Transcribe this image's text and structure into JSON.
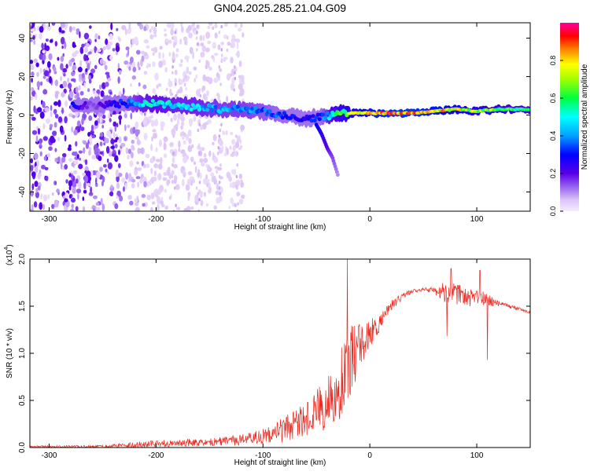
{
  "title": "GN04.2025.285.21.04.G09",
  "chart_data": [
    {
      "type": "heatmap",
      "title": "GN04.2025.285.21.04.G09",
      "xlabel": "Height of straight line (km)",
      "ylabel": "Frequency (Hz)",
      "xlim": [
        -318,
        150
      ],
      "ylim": [
        -50,
        48
      ],
      "x_ticks": [
        -300,
        -200,
        -100,
        0,
        100
      ],
      "y_ticks": [
        -40,
        -20,
        0,
        20,
        40
      ],
      "x_tick_labels": [
        "-300",
        "-200",
        "-100",
        "0",
        "100"
      ],
      "y_tick_labels": [
        "-40",
        "-20",
        "0",
        "20",
        "40"
      ],
      "colorbar": {
        "label": "Normalized spectral amplitude",
        "range": [
          0,
          1
        ],
        "ticks": [
          0.0,
          0.2,
          0.4,
          0.6,
          0.8
        ],
        "tick_labels": [
          "0.0",
          "0.2",
          "0.4",
          "0.6",
          "0.8"
        ]
      },
      "ridge": {
        "x": [
          -278,
          -260,
          -230,
          -215,
          -200,
          -180,
          -160,
          -140,
          -120,
          -100,
          -80,
          -60,
          -45,
          -35,
          -25,
          -10,
          0,
          20,
          40,
          60,
          80,
          100,
          120,
          150
        ],
        "freq": [
          5,
          5,
          6,
          6,
          6,
          5,
          4,
          3,
          3,
          2,
          0,
          -2,
          -1,
          0,
          1,
          1,
          1,
          1,
          1,
          2,
          3,
          2,
          3,
          3
        ],
        "amplitude": [
          0.3,
          0.15,
          0.35,
          0.5,
          0.55,
          0.5,
          0.5,
          0.45,
          0.45,
          0.4,
          0.35,
          0.3,
          0.35,
          0.6,
          0.7,
          0.8,
          0.9,
          0.95,
          0.95,
          0.9,
          0.8,
          0.75,
          0.7,
          0.6
        ]
      },
      "branch": {
        "x": [
          -50,
          -45,
          -40,
          -35,
          -30
        ],
        "freq": [
          -5,
          -10,
          -17,
          -22,
          -31
        ],
        "amplitude": [
          0.3,
          0.25,
          0.2,
          0.15,
          0.1
        ]
      }
    },
    {
      "type": "line",
      "title": "",
      "xlabel": "Height of straight line (km)",
      "ylabel": "SNR (10 * v/v)",
      "multiplier": "(x10",
      "multiplier_exp": "4",
      "xlim": [
        -318,
        150
      ],
      "ylim": [
        0,
        2.0
      ],
      "x_ticks": [
        -300,
        -200,
        -100,
        0,
        100
      ],
      "y_ticks": [
        0.0,
        0.5,
        1.0,
        1.5,
        2.0
      ],
      "x_tick_labels": [
        "-300",
        "-200",
        "-100",
        "0",
        "100"
      ],
      "y_tick_labels": [
        "0.0",
        "0.5",
        "1.0",
        "1.5",
        "2.0"
      ],
      "color": "#e8281e",
      "envelope": {
        "x": [
          -318,
          -250,
          -200,
          -150,
          -120,
          -100,
          -80,
          -60,
          -40,
          -30,
          -20,
          -10,
          0,
          10,
          20,
          30,
          40,
          50,
          60,
          70,
          80,
          90,
          100,
          110,
          120,
          130,
          140,
          150
        ],
        "mean": [
          0.01,
          0.01,
          0.04,
          0.06,
          0.08,
          0.12,
          0.2,
          0.3,
          0.45,
          0.6,
          0.9,
          1.1,
          1.2,
          1.35,
          1.5,
          1.6,
          1.66,
          1.68,
          1.67,
          1.64,
          1.62,
          1.6,
          1.58,
          1.57,
          1.53,
          1.5,
          1.47,
          1.43
        ],
        "noise": [
          0.01,
          0.015,
          0.04,
          0.04,
          0.06,
          0.08,
          0.15,
          0.2,
          0.28,
          0.35,
          0.4,
          0.3,
          0.15,
          0.1,
          0.06,
          0.04,
          0.02,
          0.02,
          0.03,
          0.12,
          0.12,
          0.1,
          0.1,
          0.08,
          0.03,
          0.02,
          0.015,
          0.015
        ]
      },
      "spikes": [
        {
          "x": -21,
          "y": 2.0
        },
        {
          "x": 72,
          "y": 1.18
        },
        {
          "x": 110,
          "y": 0.93
        },
        {
          "x": 76,
          "y": 1.9
        },
        {
          "x": 103,
          "y": 1.88
        }
      ]
    }
  ]
}
